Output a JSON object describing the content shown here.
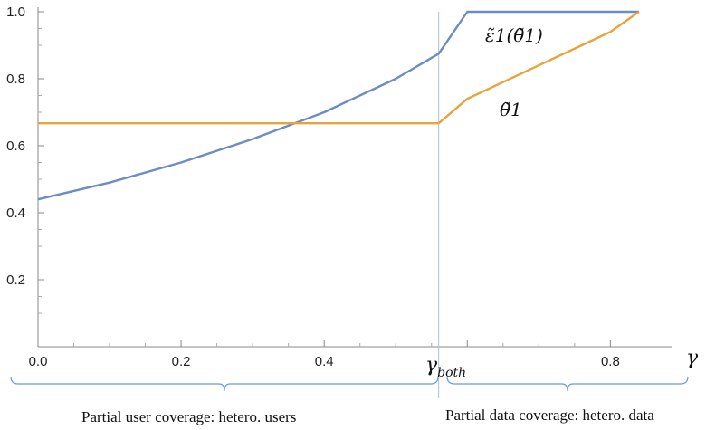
{
  "chart_data": {
    "type": "line",
    "xlabel": "γ",
    "ylabel": "",
    "xlim": [
      0,
      0.84
    ],
    "ylim": [
      0,
      1.0
    ],
    "x_ticks": [
      0.0,
      0.2,
      0.4,
      0.8
    ],
    "x_tick_labels": [
      "0.0",
      "0.2",
      "0.4",
      "0.8"
    ],
    "y_ticks": [
      0.2,
      0.4,
      0.6,
      0.8,
      1.0
    ],
    "y_tick_labels": [
      "0.2",
      "0.4",
      "0.6",
      "0.8",
      "1.0"
    ],
    "series": [
      {
        "name": "ε̃1(θ̃1)",
        "color": "#6b8cc4",
        "x": [
          0,
          0.1,
          0.2,
          0.3,
          0.4,
          0.5,
          0.56,
          0.6,
          0.7,
          0.8,
          0.84
        ],
        "y": [
          0.44,
          0.49,
          0.55,
          0.62,
          0.7,
          0.8,
          0.875,
          1.0,
          1.0,
          1.0,
          1.0
        ]
      },
      {
        "name": "θ̃1",
        "color": "#e8a33a",
        "x": [
          0,
          0.2,
          0.4,
          0.56,
          0.6,
          0.7,
          0.8,
          0.84
        ],
        "y": [
          0.667,
          0.667,
          0.667,
          0.667,
          0.74,
          0.84,
          0.94,
          1.0
        ]
      }
    ],
    "vline": {
      "x": 0.56,
      "label_main": "γ",
      "label_sub": "both"
    },
    "regions": [
      {
        "label": "Partial user coverage:  hetero. users",
        "x_range": [
          0,
          0.56
        ]
      },
      {
        "label": "Partial data coverage: hetero. data",
        "x_range": [
          0.56,
          0.84
        ]
      }
    ],
    "annotations": [
      {
        "text": "ε̃1(θ̃1)",
        "series": 0
      },
      {
        "text": "θ̃1",
        "series": 1
      }
    ],
    "grid": false
  }
}
